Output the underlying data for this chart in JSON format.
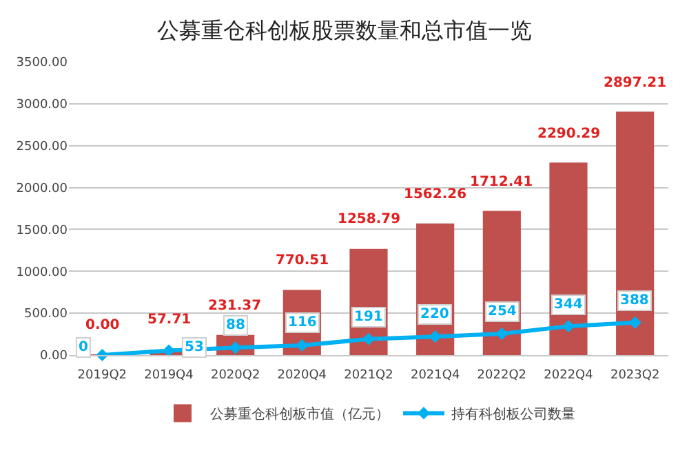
{
  "chart_data": {
    "type": "bar",
    "title": "公募重仓科创板股票数量和总市值一览",
    "categories": [
      "2019Q2",
      "2019Q4",
      "2020Q2",
      "2020Q4",
      "2021Q2",
      "2021Q4",
      "2022Q2",
      "2022Q4",
      "2023Q2"
    ],
    "series": [
      {
        "name": "公募重仓科创板市值（亿元）",
        "color": "#c0504d",
        "values": [
          0.0,
          57.71,
          231.37,
          770.51,
          1258.79,
          1562.26,
          1712.41,
          2290.29,
          2897.21
        ],
        "value_labels": [
          "0.00",
          "57.71",
          "231.37",
          "770.51",
          "1258.79",
          "1562.26",
          "1712.41",
          "2290.29",
          "2897.21"
        ]
      },
      {
        "name": "持有科创板公司数量",
        "type": "line",
        "color": "#00b0f0",
        "marker": "diamond",
        "values": [
          0,
          53,
          88,
          116,
          191,
          220,
          254,
          344,
          388
        ],
        "value_labels": [
          "0",
          "53",
          "88",
          "116",
          "191",
          "220",
          "254",
          "344",
          "388"
        ]
      }
    ],
    "ylim": [
      0,
      3500
    ],
    "yticks": [
      {
        "value": 0,
        "label": "0.00"
      },
      {
        "value": 500,
        "label": "500.00"
      },
      {
        "value": 1000,
        "label": "1000.00"
      },
      {
        "value": 1500,
        "label": "1500.00"
      },
      {
        "value": 2000,
        "label": "2000.00"
      },
      {
        "value": 2500,
        "label": "2500.00"
      },
      {
        "value": 3000,
        "label": "3000.00"
      },
      {
        "value": 3500,
        "label": "3500.00"
      }
    ],
    "grid": "y",
    "legend": "bottom"
  }
}
